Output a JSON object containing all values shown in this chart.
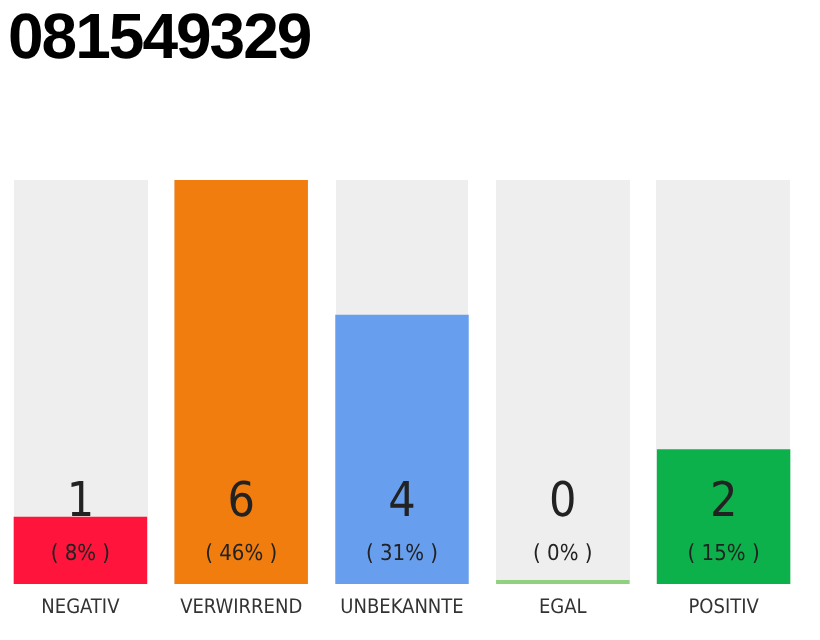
{
  "chart_data": {
    "type": "bar",
    "title": "081549329",
    "categories": [
      "NEGATIV",
      "VERWIRREND",
      "UNBEKANNTE",
      "EGAL",
      "POSITIV"
    ],
    "values": [
      1,
      6,
      4,
      0,
      2
    ],
    "colors": [
      "#ff153c",
      "#f07d0e",
      "#679eee",
      "#8fd17e",
      "#0db14b"
    ],
    "value_labels": [
      "1\n( 8% )",
      "6\n( 46% )",
      "4\n( 31% )",
      "0\n( 0% )",
      "2\n( 15% )"
    ],
    "grid": false,
    "legend": false
  }
}
